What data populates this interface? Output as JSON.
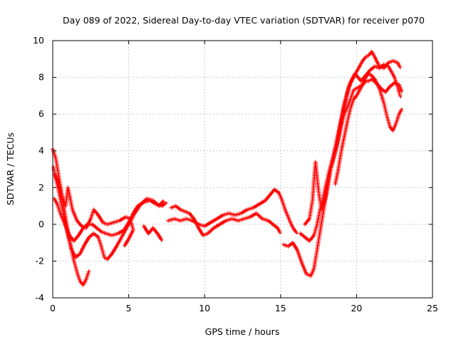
{
  "chart_data": {
    "type": "scatter",
    "title": "Day 089 of 2022, Sidereal Day-to-day VTEC variation (SDTVAR) for receiver p070",
    "xlabel": "GPS time / hours",
    "ylabel": "SDTVAR / TECUs",
    "xlim": [
      0,
      25
    ],
    "ylim": [
      -4,
      10
    ],
    "xticks": [
      "0",
      "5",
      "10",
      "15",
      "20",
      "25"
    ],
    "yticks": [
      "-4",
      "-2",
      "0",
      "2",
      "4",
      "6",
      "8",
      "10"
    ],
    "grid": true,
    "marker": "+",
    "color": "#ff0000",
    "series": [
      {
        "name": "track-1",
        "points": [
          [
            0.0,
            4.1
          ],
          [
            0.2,
            3.6
          ],
          [
            0.4,
            2.6
          ],
          [
            0.6,
            1.6
          ],
          [
            0.8,
            0.6
          ],
          [
            1.0,
            -0.4
          ],
          [
            1.2,
            -1.2
          ],
          [
            1.4,
            -2.0
          ],
          [
            1.6,
            -2.6
          ],
          [
            1.8,
            -3.1
          ],
          [
            2.0,
            -3.3
          ],
          [
            2.2,
            -3.0
          ],
          [
            2.4,
            -2.5
          ]
        ]
      },
      {
        "name": "track-2",
        "points": [
          [
            0.05,
            3.1
          ],
          [
            0.2,
            2.5
          ],
          [
            0.4,
            1.8
          ],
          [
            0.6,
            1.0
          ],
          [
            0.8,
            0.2
          ],
          [
            1.0,
            -0.6
          ],
          [
            1.2,
            -1.3
          ],
          [
            1.5,
            -1.8
          ],
          [
            1.8,
            -1.6
          ],
          [
            2.1,
            -1.1
          ],
          [
            2.4,
            -0.7
          ],
          [
            2.7,
            -0.5
          ],
          [
            3.0,
            -0.7
          ],
          [
            3.2,
            -1.2
          ],
          [
            3.4,
            -1.8
          ],
          [
            3.6,
            -1.9
          ],
          [
            3.9,
            -1.6
          ],
          [
            4.2,
            -1.2
          ],
          [
            4.6,
            -0.6
          ],
          [
            5.0,
            0.0
          ],
          [
            5.4,
            0.6
          ],
          [
            5.8,
            1.1
          ],
          [
            6.2,
            1.4
          ],
          [
            6.6,
            1.3
          ],
          [
            7.0,
            1.0
          ],
          [
            7.3,
            1.3
          ]
        ]
      },
      {
        "name": "track-3",
        "points": [
          [
            0.1,
            1.4
          ],
          [
            0.3,
            1.1
          ],
          [
            0.5,
            0.6
          ],
          [
            0.8,
            0.0
          ],
          [
            1.1,
            -0.6
          ],
          [
            1.4,
            -0.9
          ],
          [
            1.7,
            -0.6
          ],
          [
            2.0,
            -0.2
          ],
          [
            2.3,
            0.0
          ],
          [
            2.6,
            0.0
          ],
          [
            2.9,
            -0.2
          ],
          [
            3.2,
            -0.4
          ],
          [
            3.5,
            -0.5
          ],
          [
            3.9,
            -0.6
          ],
          [
            4.3,
            -0.5
          ],
          [
            4.7,
            -0.3
          ],
          [
            5.0,
            0.1
          ],
          [
            5.3,
            0.6
          ],
          [
            5.6,
            1.0
          ],
          [
            6.0,
            1.2
          ],
          [
            6.4,
            1.3
          ],
          [
            6.8,
            1.1
          ],
          [
            7.2,
            1.0
          ],
          [
            7.5,
            1.2
          ]
        ]
      },
      {
        "name": "track-4",
        "points": [
          [
            0.15,
            2.7
          ],
          [
            0.35,
            2.3
          ],
          [
            0.6,
            1.6
          ],
          [
            0.85,
            1.0
          ],
          [
            1.0,
            2.0
          ],
          [
            1.1,
            1.6
          ],
          [
            1.3,
            0.8
          ],
          [
            1.6,
            0.2
          ],
          [
            1.9,
            -0.1
          ],
          [
            2.2,
            -0.2
          ],
          [
            2.5,
            0.3
          ],
          [
            2.7,
            0.8
          ],
          [
            3.0,
            0.5
          ],
          [
            3.3,
            0.1
          ],
          [
            3.6,
            0.0
          ],
          [
            4.0,
            0.1
          ],
          [
            4.4,
            0.2
          ],
          [
            4.8,
            0.4
          ],
          [
            5.1,
            0.3
          ],
          [
            5.3,
            -0.3
          ],
          [
            5.0,
            -0.8
          ],
          [
            4.7,
            -1.2
          ]
        ]
      },
      {
        "name": "track-5",
        "points": [
          [
            6.0,
            -0.1
          ],
          [
            6.3,
            -0.5
          ],
          [
            6.6,
            -0.2
          ],
          [
            6.9,
            -0.5
          ],
          [
            7.2,
            -0.9
          ]
        ]
      },
      {
        "name": "track-6",
        "points": [
          [
            7.8,
            0.9
          ],
          [
            8.1,
            1.0
          ],
          [
            8.4,
            0.8
          ],
          [
            8.7,
            0.7
          ],
          [
            9.0,
            0.6
          ],
          [
            9.3,
            0.3
          ],
          [
            9.6,
            -0.2
          ],
          [
            9.9,
            -0.6
          ],
          [
            10.2,
            -0.5
          ],
          [
            10.6,
            -0.2
          ],
          [
            11.0,
            0.0
          ],
          [
            11.4,
            0.2
          ],
          [
            11.8,
            0.3
          ],
          [
            12.2,
            0.2
          ],
          [
            12.6,
            0.3
          ],
          [
            13.0,
            0.4
          ],
          [
            13.4,
            0.6
          ],
          [
            13.8,
            0.3
          ],
          [
            14.2,
            0.2
          ],
          [
            14.5,
            0.0
          ],
          [
            14.8,
            -0.2
          ],
          [
            15.0,
            -0.5
          ]
        ]
      },
      {
        "name": "track-7",
        "points": [
          [
            7.6,
            0.2
          ],
          [
            8.0,
            0.3
          ],
          [
            8.4,
            0.2
          ],
          [
            8.8,
            0.3
          ],
          [
            9.2,
            0.2
          ],
          [
            9.6,
            0.0
          ],
          [
            10.0,
            -0.1
          ],
          [
            10.4,
            0.1
          ],
          [
            10.8,
            0.3
          ],
          [
            11.2,
            0.5
          ],
          [
            11.6,
            0.6
          ],
          [
            12.0,
            0.5
          ],
          [
            12.4,
            0.6
          ],
          [
            12.8,
            0.8
          ],
          [
            13.2,
            0.9
          ],
          [
            13.6,
            1.1
          ],
          [
            14.0,
            1.3
          ],
          [
            14.3,
            1.6
          ],
          [
            14.6,
            1.9
          ],
          [
            14.9,
            1.7
          ],
          [
            15.1,
            1.3
          ],
          [
            15.3,
            0.8
          ],
          [
            15.5,
            0.4
          ],
          [
            15.7,
            0.0
          ],
          [
            15.9,
            -0.3
          ],
          [
            16.1,
            -0.5
          ]
        ]
      },
      {
        "name": "track-8",
        "points": [
          [
            15.2,
            -1.1
          ],
          [
            15.5,
            -1.2
          ],
          [
            15.8,
            -1.0
          ],
          [
            16.1,
            -1.4
          ],
          [
            16.4,
            -2.1
          ],
          [
            16.7,
            -2.7
          ],
          [
            17.0,
            -2.8
          ],
          [
            17.2,
            -2.4
          ],
          [
            17.4,
            -1.4
          ],
          [
            17.6,
            -0.4
          ],
          [
            17.8,
            0.6
          ],
          [
            18.0,
            1.6
          ],
          [
            18.2,
            2.6
          ],
          [
            18.4,
            3.4
          ],
          [
            18.6,
            4.0
          ],
          [
            18.8,
            4.6
          ],
          [
            19.0,
            5.4
          ],
          [
            19.2,
            6.0
          ],
          [
            19.4,
            6.4
          ],
          [
            19.6,
            6.8
          ],
          [
            19.8,
            7.3
          ],
          [
            20.0,
            7.4
          ],
          [
            20.2,
            7.5
          ],
          [
            20.4,
            7.6
          ],
          [
            20.6,
            8.0
          ],
          [
            20.8,
            8.2
          ],
          [
            21.0,
            8.1
          ],
          [
            21.2,
            7.9
          ],
          [
            21.5,
            7.4
          ],
          [
            21.8,
            6.6
          ],
          [
            22.0,
            5.9
          ],
          [
            22.2,
            5.3
          ],
          [
            22.4,
            5.1
          ],
          [
            22.6,
            5.5
          ],
          [
            22.8,
            6.0
          ],
          [
            23.0,
            6.3
          ]
        ]
      },
      {
        "name": "track-9",
        "points": [
          [
            16.3,
            -0.5
          ],
          [
            16.6,
            -0.7
          ],
          [
            16.9,
            -0.9
          ],
          [
            17.2,
            -0.6
          ],
          [
            17.4,
            0.0
          ],
          [
            17.6,
            0.8
          ],
          [
            17.8,
            1.4
          ],
          [
            18.0,
            2.2
          ],
          [
            18.2,
            2.9
          ],
          [
            18.4,
            3.5
          ],
          [
            18.6,
            4.2
          ],
          [
            18.8,
            5.0
          ],
          [
            19.0,
            5.8
          ],
          [
            19.2,
            6.6
          ],
          [
            19.4,
            7.2
          ],
          [
            19.6,
            7.7
          ],
          [
            19.8,
            8.0
          ],
          [
            20.0,
            8.3
          ],
          [
            20.2,
            8.6
          ],
          [
            20.4,
            8.9
          ],
          [
            20.6,
            9.1
          ],
          [
            20.8,
            9.2
          ],
          [
            21.0,
            9.4
          ],
          [
            21.2,
            9.1
          ],
          [
            21.5,
            8.6
          ],
          [
            21.8,
            8.5
          ],
          [
            22.1,
            8.8
          ],
          [
            22.4,
            8.9
          ],
          [
            22.7,
            8.8
          ],
          [
            22.9,
            8.5
          ]
        ]
      },
      {
        "name": "track-10",
        "points": [
          [
            16.6,
            0.0
          ],
          [
            16.9,
            0.3
          ],
          [
            17.1,
            1.3
          ],
          [
            17.2,
            2.4
          ],
          [
            17.3,
            3.4
          ],
          [
            17.5,
            1.8
          ],
          [
            17.7,
            0.8
          ],
          [
            17.9,
            1.3
          ],
          [
            18.1,
            2.0
          ],
          [
            18.3,
            3.0
          ],
          [
            18.5,
            3.6
          ],
          [
            18.7,
            4.3
          ],
          [
            18.9,
            5.2
          ],
          [
            19.1,
            6.0
          ],
          [
            19.3,
            6.8
          ],
          [
            19.5,
            7.5
          ],
          [
            19.7,
            7.9
          ],
          [
            19.9,
            8.2
          ],
          [
            20.1,
            8.0
          ],
          [
            20.3,
            7.8
          ],
          [
            20.6,
            8.1
          ],
          [
            20.9,
            8.4
          ],
          [
            21.2,
            8.6
          ],
          [
            21.5,
            8.5
          ],
          [
            21.8,
            8.7
          ],
          [
            22.1,
            8.6
          ],
          [
            22.3,
            8.3
          ],
          [
            22.5,
            8.0
          ],
          [
            22.7,
            7.5
          ],
          [
            22.9,
            6.9
          ]
        ]
      },
      {
        "name": "track-11",
        "points": [
          [
            18.6,
            2.2
          ],
          [
            18.8,
            3.0
          ],
          [
            19.0,
            4.0
          ],
          [
            19.2,
            4.8
          ],
          [
            19.4,
            5.6
          ],
          [
            19.6,
            6.3
          ],
          [
            19.8,
            6.8
          ],
          [
            20.0,
            7.0
          ],
          [
            20.2,
            7.3
          ],
          [
            20.4,
            7.6
          ],
          [
            20.6,
            7.8
          ],
          [
            20.8,
            7.8
          ],
          [
            21.0,
            7.9
          ],
          [
            21.3,
            7.7
          ],
          [
            21.6,
            7.4
          ],
          [
            21.9,
            7.2
          ],
          [
            22.2,
            7.5
          ],
          [
            22.5,
            7.7
          ],
          [
            22.8,
            7.6
          ],
          [
            23.0,
            7.2
          ]
        ]
      }
    ]
  }
}
